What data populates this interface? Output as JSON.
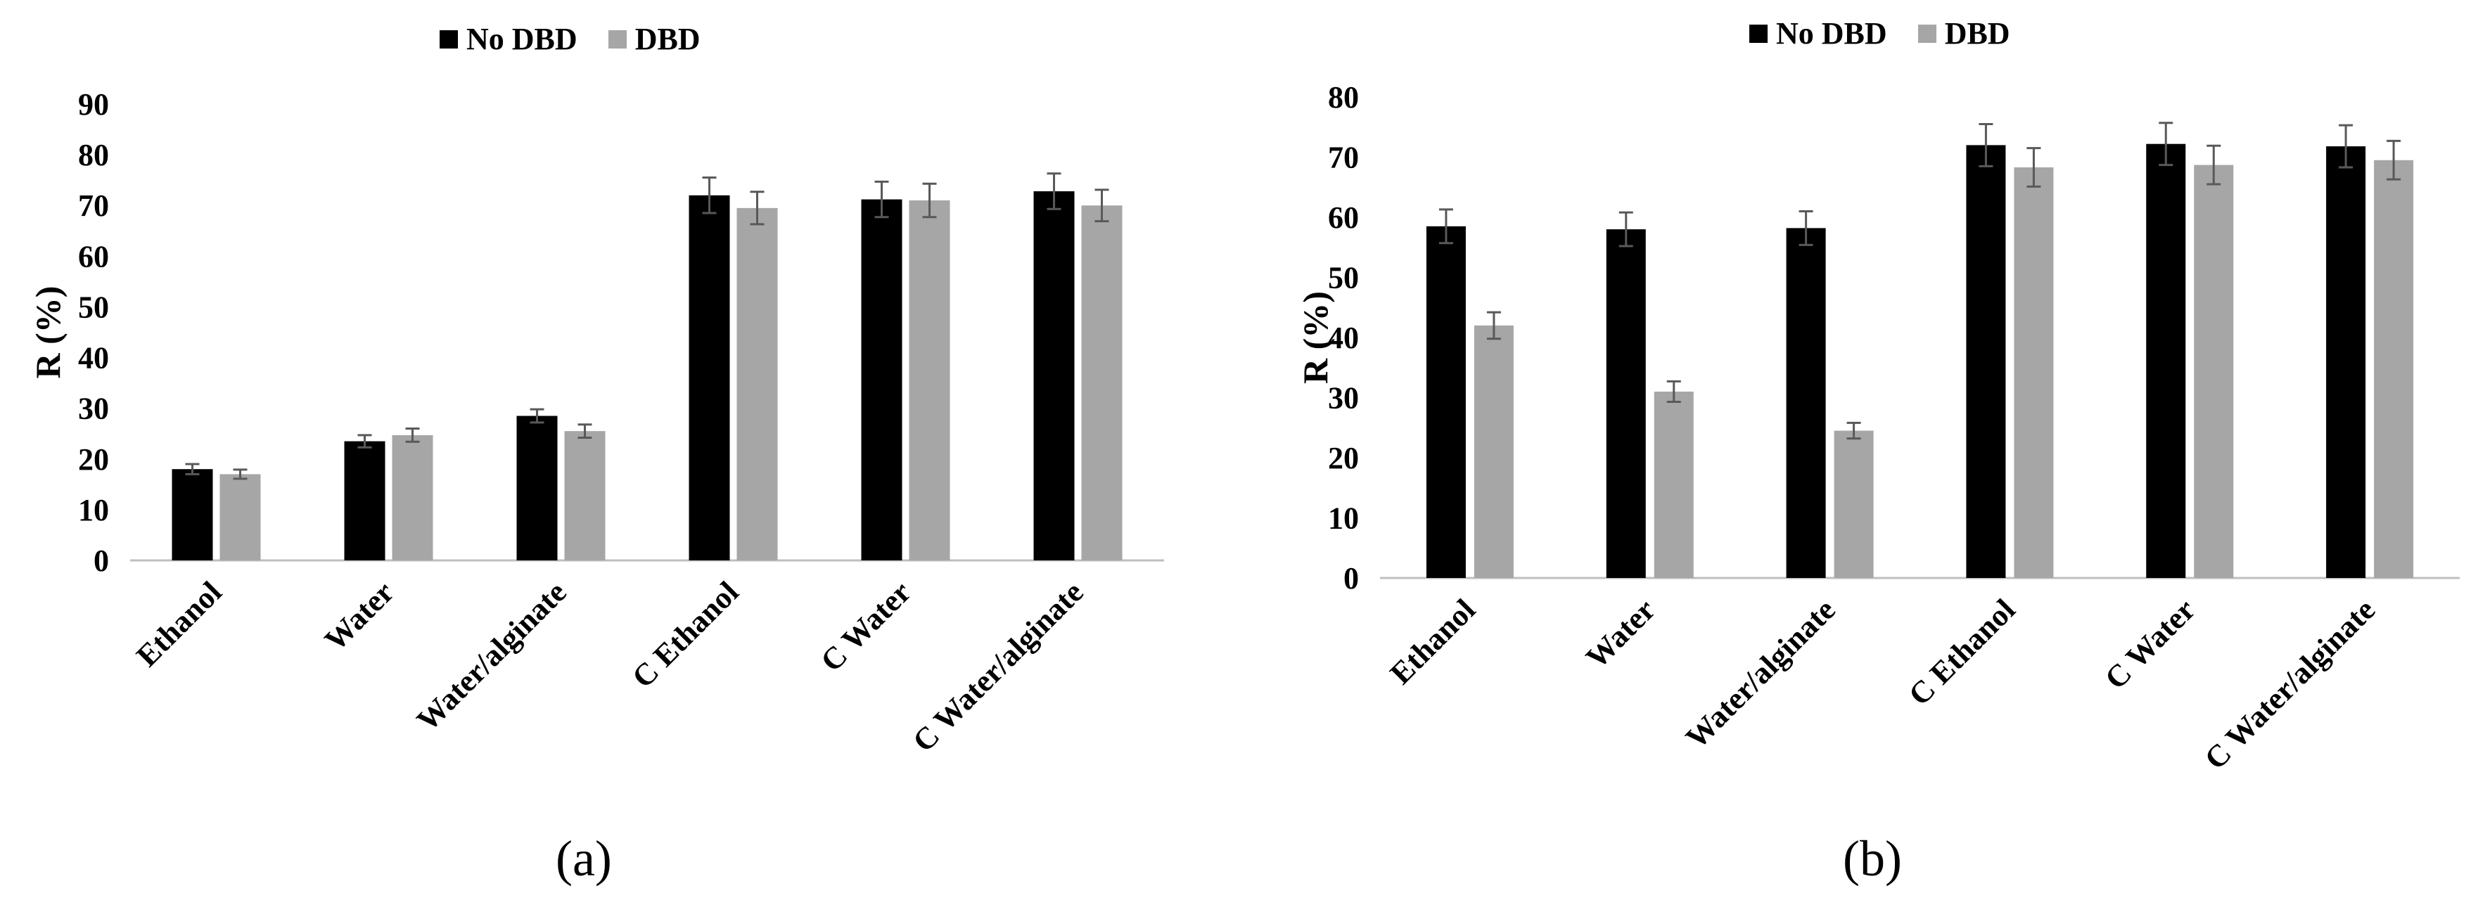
{
  "legend": {
    "series_1": "No DBD",
    "series_2": "DBD"
  },
  "colors": {
    "no_dbd": "#000000",
    "dbd": "#a6a6a6",
    "error_bar": "#595959",
    "axis": "#bfbfbf"
  },
  "panels": {
    "a_label": "(a)",
    "b_label": "(b)"
  },
  "chart_data": [
    {
      "type": "bar",
      "panel": "(a)",
      "ylabel": "R (%)",
      "ylim": [
        0,
        90
      ],
      "yticks": [
        "0",
        "10",
        "20",
        "30",
        "40",
        "50",
        "60",
        "70",
        "80",
        "90"
      ],
      "categories": [
        "Ethanol",
        "Water",
        "Water/alginate",
        "C Ethanol",
        "C Water",
        "C Water/alginate"
      ],
      "series": [
        {
          "name": "No DBD",
          "values": [
            18,
            23.5,
            28.5,
            72,
            71.2,
            72.8
          ],
          "errors": [
            1,
            1.2,
            1.3,
            3.5,
            3.5,
            3.5
          ]
        },
        {
          "name": "DBD",
          "values": [
            17,
            24.7,
            25.5,
            69.5,
            71,
            70
          ],
          "errors": [
            0.9,
            1.3,
            1.3,
            3.2,
            3.3,
            3.1
          ]
        }
      ],
      "grid": false,
      "legend_position": "top-center"
    },
    {
      "type": "bar",
      "panel": "(b)",
      "ylabel": "R (%)",
      "ylim": [
        0,
        80
      ],
      "yticks": [
        "0",
        "10",
        "20",
        "30",
        "40",
        "50",
        "60",
        "70",
        "80"
      ],
      "categories": [
        "Ethanol",
        "Water",
        "Water/alginate",
        "C Ethanol",
        "C Water",
        "C Water/alginate"
      ],
      "series": [
        {
          "name": "No DBD",
          "values": [
            58.5,
            58,
            58.2,
            72,
            72.2,
            71.8
          ],
          "errors": [
            2.8,
            2.8,
            2.8,
            3.5,
            3.5,
            3.5
          ]
        },
        {
          "name": "DBD",
          "values": [
            42,
            31,
            24.5,
            68.3,
            68.7,
            69.5
          ],
          "errors": [
            2.2,
            1.7,
            1.3,
            3.2,
            3.2,
            3.2
          ]
        }
      ],
      "grid": false,
      "legend_position": "top-center"
    }
  ]
}
